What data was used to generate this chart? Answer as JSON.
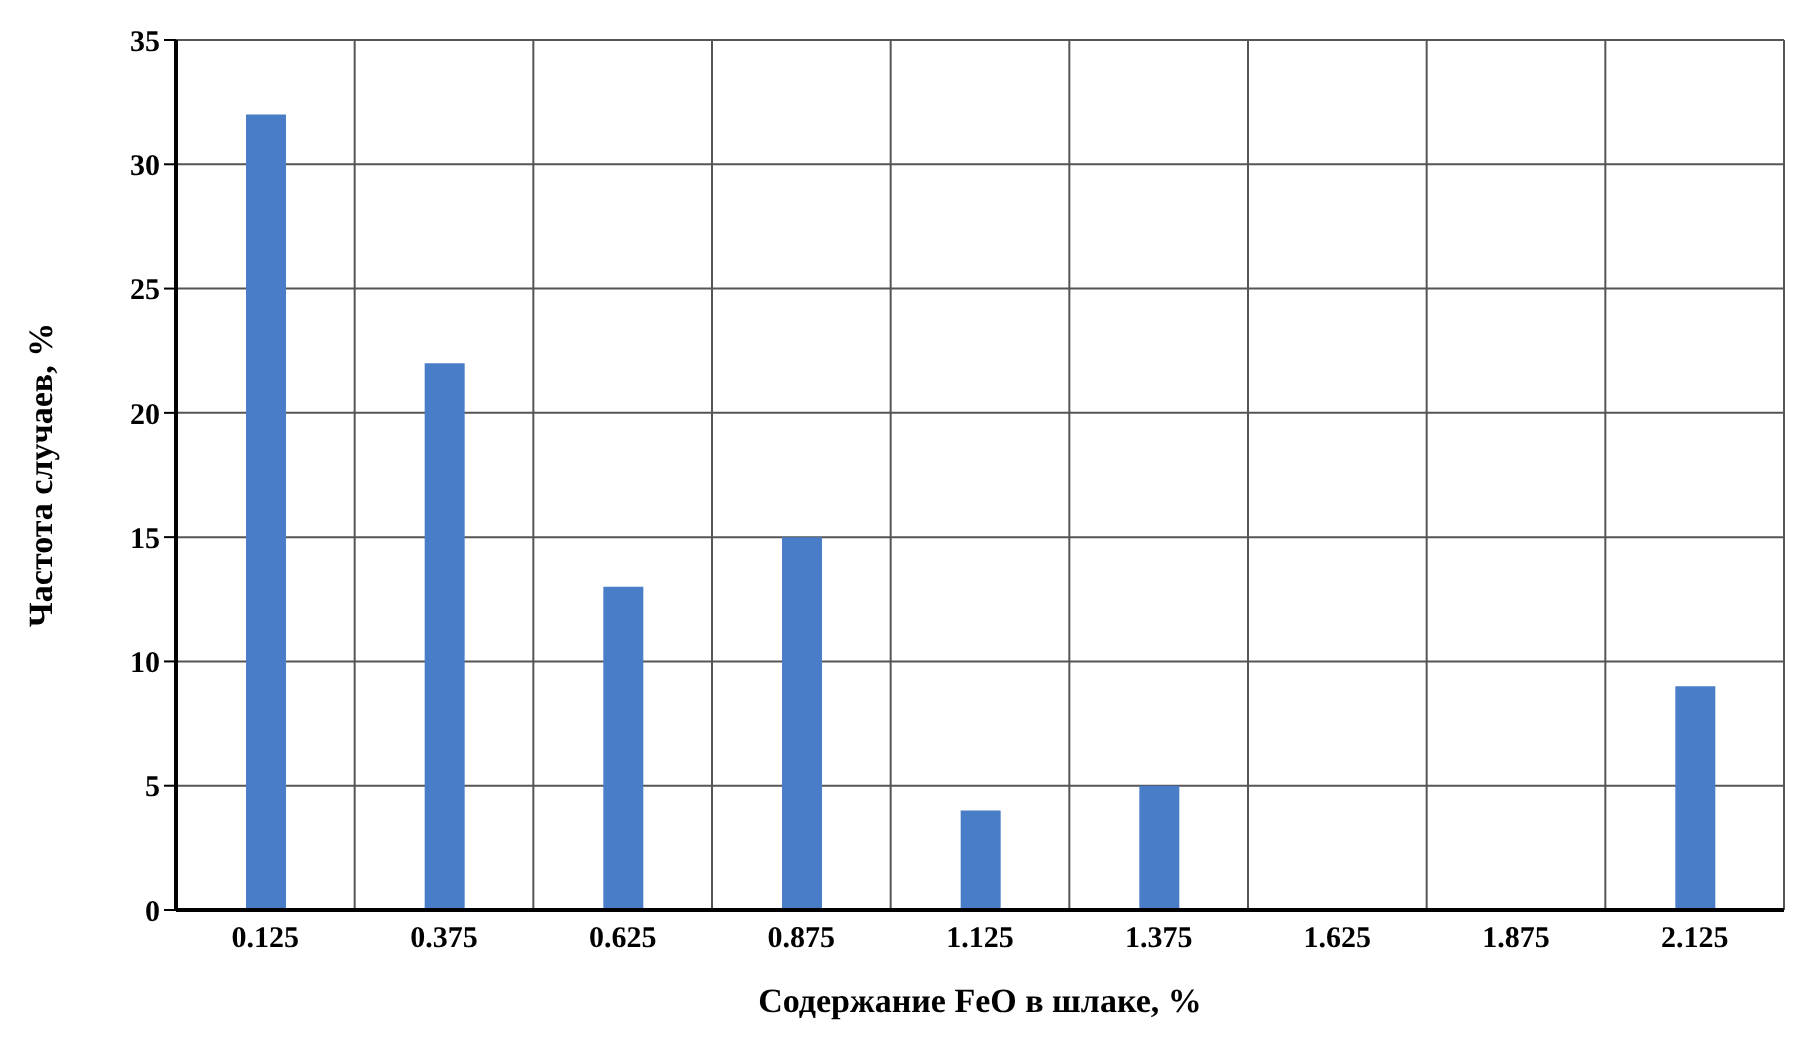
{
  "chart_data": {
    "type": "bar",
    "xlabel": "Содержание FeO в шлаке, %",
    "ylabel": "Частота случаев, %",
    "categories": [
      "0.125",
      "0.375",
      "0.625",
      "0.875",
      "1.125",
      "1.375",
      "1.625",
      "1.875",
      "2.125"
    ],
    "values": [
      32,
      22,
      13,
      15,
      4,
      5,
      0,
      0,
      9
    ],
    "color": "#4a7dc8",
    "ylim": [
      0,
      35
    ],
    "yticks": [
      0,
      5,
      10,
      15,
      20,
      25,
      30,
      35
    ],
    "grid": true
  }
}
